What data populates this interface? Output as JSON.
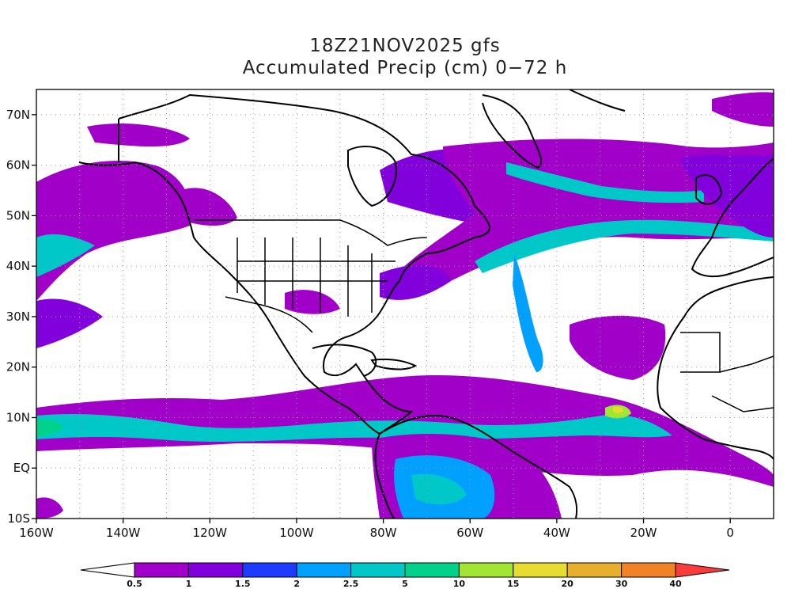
{
  "title": {
    "line1": "18Z21NOV2025 gfs",
    "line2": "Accumulated Precip (cm) 0−72 h"
  },
  "map": {
    "lon_range": [
      -160,
      10
    ],
    "lat_range": [
      -10,
      75
    ],
    "lon_ticks": [
      {
        "value": -160,
        "label": "160W"
      },
      {
        "value": -140,
        "label": "140W"
      },
      {
        "value": -120,
        "label": "120W"
      },
      {
        "value": -100,
        "label": "100W"
      },
      {
        "value": -80,
        "label": "80W"
      },
      {
        "value": -60,
        "label": "60W"
      },
      {
        "value": -40,
        "label": "40W"
      },
      {
        "value": -20,
        "label": "20W"
      },
      {
        "value": 0,
        "label": "0"
      }
    ],
    "lat_ticks": [
      {
        "value": -10,
        "label": "10S"
      },
      {
        "value": 0,
        "label": "EQ"
      },
      {
        "value": 10,
        "label": "10N"
      },
      {
        "value": 20,
        "label": "20N"
      },
      {
        "value": 30,
        "label": "30N"
      },
      {
        "value": 40,
        "label": "40N"
      },
      {
        "value": 50,
        "label": "50N"
      },
      {
        "value": 60,
        "label": "60N"
      },
      {
        "value": 70,
        "label": "70N"
      }
    ],
    "grid": true,
    "grid_lon_values": [
      -150,
      -140,
      -130,
      -120,
      -110,
      -100,
      -90,
      -80,
      -70,
      -60,
      -50,
      -40,
      -30,
      -20,
      -10,
      0
    ],
    "grid_lat_values": [
      0,
      10,
      20,
      30,
      40,
      50,
      60,
      70
    ]
  },
  "colorbar": {
    "colors": [
      "#ffffff",
      "#a000c8",
      "#8200dc",
      "#1e3cff",
      "#00a0ff",
      "#00c8c8",
      "#00d28c",
      "#a0e632",
      "#e6dc32",
      "#e6af2d",
      "#f08228",
      "#fa3c3c"
    ],
    "labels": [
      "0.5",
      "1",
      "1.5",
      "2",
      "2.5",
      "5",
      "10",
      "15",
      "20",
      "30",
      "40"
    ]
  },
  "precip_colors": {
    "light": "#a000c8",
    "mid": "#8200dc",
    "blue": "#1e3cff",
    "sky": "#00a0ff",
    "teal": "#00c8c8",
    "green": "#00d28c",
    "lime": "#a0e632",
    "yellow": "#e6dc32"
  }
}
